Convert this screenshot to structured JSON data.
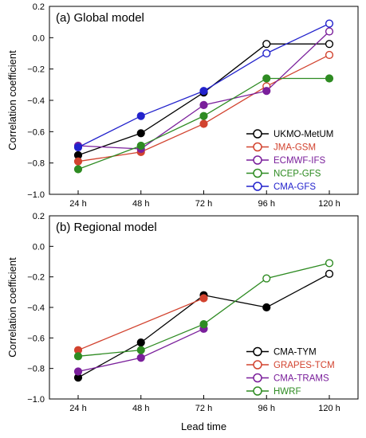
{
  "figure": {
    "xlabel": "Lead time",
    "ylabel": "Correlation coefficient"
  },
  "chart_data": [
    {
      "type": "line",
      "title": "(a) Global model",
      "xlabel": "",
      "ylabel": "Correlation coefficient",
      "categories": [
        "24 h",
        "48 h",
        "72 h",
        "96 h",
        "120 h"
      ],
      "ylim": [
        -1.0,
        0.2
      ],
      "yticks": [
        -1.0,
        -0.8,
        -0.6,
        -0.4,
        -0.2,
        0.0,
        0.2
      ],
      "ytick_labels": [
        "−1.0",
        "−0.8",
        "−0.6",
        "−0.4",
        "−0.2",
        "0.0",
        "0.2"
      ],
      "grid": false,
      "legend_position": "bottom-right",
      "series": [
        {
          "name": "UKMO-MetUM",
          "color": "#000000",
          "values": [
            -0.75,
            -0.61,
            -0.35,
            -0.04,
            -0.04
          ],
          "filled": [
            true,
            true,
            true,
            false,
            false
          ]
        },
        {
          "name": "JMA-GSM",
          "color": "#d2432f",
          "values": [
            -0.79,
            -0.73,
            -0.55,
            -0.31,
            -0.11
          ],
          "filled": [
            true,
            true,
            true,
            false,
            false
          ]
        },
        {
          "name": "ECMWF-IFS",
          "color": "#7a1f9b",
          "values": [
            -0.69,
            -0.71,
            -0.43,
            -0.34,
            0.04
          ],
          "filled": [
            true,
            true,
            true,
            true,
            false
          ]
        },
        {
          "name": "NCEP-GFS",
          "color": "#2e8b22",
          "values": [
            -0.84,
            -0.69,
            -0.5,
            -0.26,
            -0.26
          ],
          "filled": [
            true,
            true,
            true,
            true,
            true
          ]
        },
        {
          "name": "CMA-GFS",
          "color": "#2222cc",
          "values": [
            -0.7,
            -0.5,
            -0.34,
            -0.1,
            0.09
          ],
          "filled": [
            true,
            true,
            true,
            false,
            false
          ]
        }
      ]
    },
    {
      "type": "line",
      "title": "(b) Regional model",
      "xlabel": "Lead time",
      "ylabel": "Correlation coefficient",
      "categories": [
        "24 h",
        "48 h",
        "72 h",
        "96 h",
        "120 h"
      ],
      "ylim": [
        -1.0,
        0.2
      ],
      "yticks": [
        -1.0,
        -0.8,
        -0.6,
        -0.4,
        -0.2,
        0.0,
        0.2
      ],
      "ytick_labels": [
        "−1.0",
        "−0.8",
        "−0.6",
        "−0.4",
        "−0.2",
        "0.0",
        "0.2"
      ],
      "grid": false,
      "legend_position": "bottom-right",
      "series": [
        {
          "name": "CMA-TYM",
          "color": "#000000",
          "values": [
            -0.86,
            -0.63,
            -0.32,
            -0.4,
            -0.18
          ],
          "filled": [
            true,
            true,
            true,
            true,
            false
          ]
        },
        {
          "name": "GRAPES-TCM",
          "color": "#d2432f",
          "values": [
            -0.68,
            null,
            -0.34,
            null,
            null
          ],
          "filled": [
            true,
            true,
            true,
            true,
            true
          ]
        },
        {
          "name": "CMA-TRAMS",
          "color": "#7a1f9b",
          "values": [
            -0.82,
            -0.73,
            -0.54,
            null,
            null
          ],
          "filled": [
            true,
            true,
            true,
            true,
            true
          ]
        },
        {
          "name": "HWRF",
          "color": "#2e8b22",
          "values": [
            -0.72,
            -0.68,
            -0.51,
            -0.21,
            -0.11
          ],
          "filled": [
            true,
            true,
            true,
            false,
            false
          ]
        }
      ]
    }
  ]
}
